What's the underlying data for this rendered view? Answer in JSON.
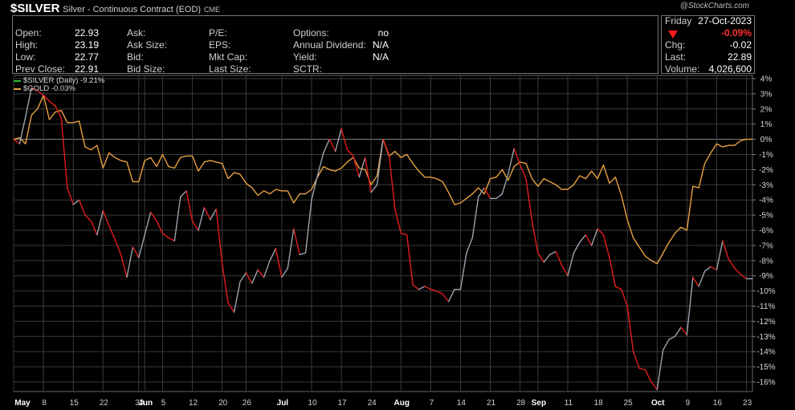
{
  "header": {
    "symbol": "$SILVER",
    "description": "Silver - Continuous Contract (EOD)",
    "exchange": "CME",
    "watermark": "@StockCharts.com"
  },
  "quote": {
    "open_label": "Open:",
    "open": "22.93",
    "high_label": "High:",
    "high": "23.19",
    "low_label": "Low:",
    "low": "22.77",
    "prev_label": "Prev Close:",
    "prev": "22.91",
    "ask_label": "Ask:",
    "asksize_label": "Ask Size:",
    "bid_label": "Bid:",
    "bidsize_label": "Bid Size:",
    "pe_label": "P/E:",
    "eps_label": "EPS:",
    "mktcap_label": "Mkt Cap:",
    "lastsize_label": "Last Size:",
    "options_label": "Options:",
    "options": "no",
    "div_label": "Annual Dividend:",
    "div": "N/A",
    "yield_label": "Yield:",
    "yield": "N/A",
    "sctr_label": "SCTR:",
    "day": "Friday",
    "date": "27-Oct-2023",
    "change_pct": "-0.09%",
    "chg_label": "Chg:",
    "chg": "-0.02",
    "last_label": "Last:",
    "last": "22.89",
    "volume_label": "Volume:",
    "volume": "4,026,600"
  },
  "colors": {
    "silver_down": "#e51c1c",
    "silver_up": "#9aa4b0",
    "gold": "#e8a040",
    "grid": "#3a3a3a",
    "zero": "#8a8a8a"
  },
  "chart_data": {
    "type": "line",
    "ylim": [
      -17,
      4.5
    ],
    "yticks": [
      "4%",
      "3%",
      "2%",
      "1%",
      "0%",
      "-1%",
      "-2%",
      "-3%",
      "-4%",
      "-5%",
      "-6%",
      "-7%",
      "-8%",
      "-9%",
      "-10%",
      "-11%",
      "-12%",
      "-13%",
      "-14%",
      "-15%",
      "-16%"
    ],
    "xtick_labels": [
      "May",
      "8",
      "15",
      "22",
      "30",
      "Jun",
      "5",
      "12",
      "20",
      "26",
      "Jul",
      "10",
      "17",
      "24",
      "Aug",
      "7",
      "14",
      "21",
      "28",
      "Sep",
      "11",
      "18",
      "25",
      "Oct",
      "9",
      "16",
      "23"
    ],
    "xtick_index": [
      0,
      5,
      10,
      15,
      21,
      22,
      25,
      30,
      35,
      39,
      45,
      50,
      55,
      60,
      65,
      70,
      75,
      80,
      85,
      88,
      93,
      98,
      103,
      108,
      113,
      118,
      123
    ],
    "series": [
      {
        "name": "$SILVER (Daily) -9.21%",
        "values": [
          0.0,
          -0.3,
          1.5,
          3.4,
          3.2,
          2.9,
          2.5,
          2.2,
          1.4,
          -3.2,
          -4.3,
          -4.0,
          -5.0,
          -5.4,
          -6.3,
          -4.7,
          -5.7,
          -6.6,
          -7.6,
          -9.1,
          -7.1,
          -7.8,
          -6.3,
          -4.8,
          -5.4,
          -6.2,
          -6.5,
          -6.7,
          -3.8,
          -3.4,
          -5.4,
          -6.0,
          -4.5,
          -5.3,
          -4.6,
          -8.2,
          -10.8,
          -11.4,
          -9.4,
          -8.8,
          -9.5,
          -8.6,
          -9.1,
          -8.0,
          -7.2,
          -9.1,
          -8.5,
          -5.9,
          -7.6,
          -7.5,
          -4.0,
          -2.4,
          -0.9,
          0.0,
          -0.8,
          0.7,
          -0.7,
          -1.1,
          -2.5,
          -1.2,
          -3.5,
          -3.0,
          0.0,
          -1.0,
          -4.6,
          -6.2,
          -6.3,
          -9.6,
          -9.9,
          -9.7,
          -9.9,
          -10.0,
          -10.2,
          -10.7,
          -9.9,
          -9.9,
          -7.5,
          -6.5,
          -3.8,
          -3.2,
          -3.9,
          -3.9,
          -3.6,
          -2.3,
          -0.6,
          -1.7,
          -2.6,
          -5.4,
          -7.5,
          -8.1,
          -7.6,
          -7.4,
          -8.3,
          -9.0,
          -7.5,
          -6.8,
          -6.3,
          -7.0,
          -5.9,
          -6.3,
          -7.8,
          -9.7,
          -9.9,
          -11.0,
          -14.0,
          -15.1,
          -15.2,
          -16.0,
          -16.5,
          -13.9,
          -13.2,
          -13.0,
          -12.4,
          -12.9,
          -9.1,
          -9.7,
          -8.7,
          -8.4,
          -8.6,
          -6.7,
          -7.9,
          -8.5,
          -8.9,
          -9.2,
          -9.2
        ],
        "color_up": "#9aa4b0",
        "color_down": "#e51c1c"
      },
      {
        "name": "$GOLD -0.03%",
        "values": [
          0.0,
          0.1,
          -0.3,
          1.6,
          2.0,
          2.9,
          1.3,
          1.8,
          1.9,
          1.1,
          1.1,
          1.2,
          -0.5,
          -0.7,
          -0.4,
          -1.9,
          -0.9,
          -1.2,
          -1.4,
          -1.5,
          -2.8,
          -2.8,
          -1.4,
          -1.2,
          -1.8,
          -1.0,
          -1.8,
          -1.9,
          -1.2,
          -1.1,
          -1.1,
          -2.1,
          -1.5,
          -1.4,
          -1.5,
          -1.6,
          -2.6,
          -2.2,
          -2.3,
          -2.9,
          -3.2,
          -3.7,
          -3.4,
          -3.6,
          -3.3,
          -3.4,
          -3.4,
          -4.2,
          -3.6,
          -3.6,
          -3.3,
          -2.5,
          -1.8,
          -2.0,
          -2.1,
          -1.9,
          -1.5,
          -1.2,
          -1.9,
          -2.0,
          -3.0,
          -2.4,
          0.0,
          -1.1,
          -0.8,
          -1.2,
          -1.0,
          -1.6,
          -2.1,
          -2.5,
          -2.5,
          -2.6,
          -2.8,
          -3.5,
          -4.3,
          -4.2,
          -3.9,
          -3.6,
          -3.2,
          -3.6,
          -2.6,
          -2.5,
          -2.0,
          -2.7,
          -1.8,
          -1.5,
          -1.6,
          -2.6,
          -3.1,
          -2.6,
          -2.8,
          -3.0,
          -3.3,
          -3.3,
          -3.0,
          -2.4,
          -2.6,
          -2.1,
          -2.6,
          -1.7,
          -2.9,
          -2.5,
          -3.7,
          -5.3,
          -6.5,
          -7.1,
          -7.7,
          -8.0,
          -8.2,
          -7.5,
          -6.8,
          -6.2,
          -5.8,
          -6.0,
          -3.1,
          -3.2,
          -1.6,
          -0.9,
          -0.3,
          -0.5,
          -0.4,
          -0.4,
          -0.1,
          0.0,
          0.0
        ],
        "color": "#e8a040"
      }
    ]
  }
}
